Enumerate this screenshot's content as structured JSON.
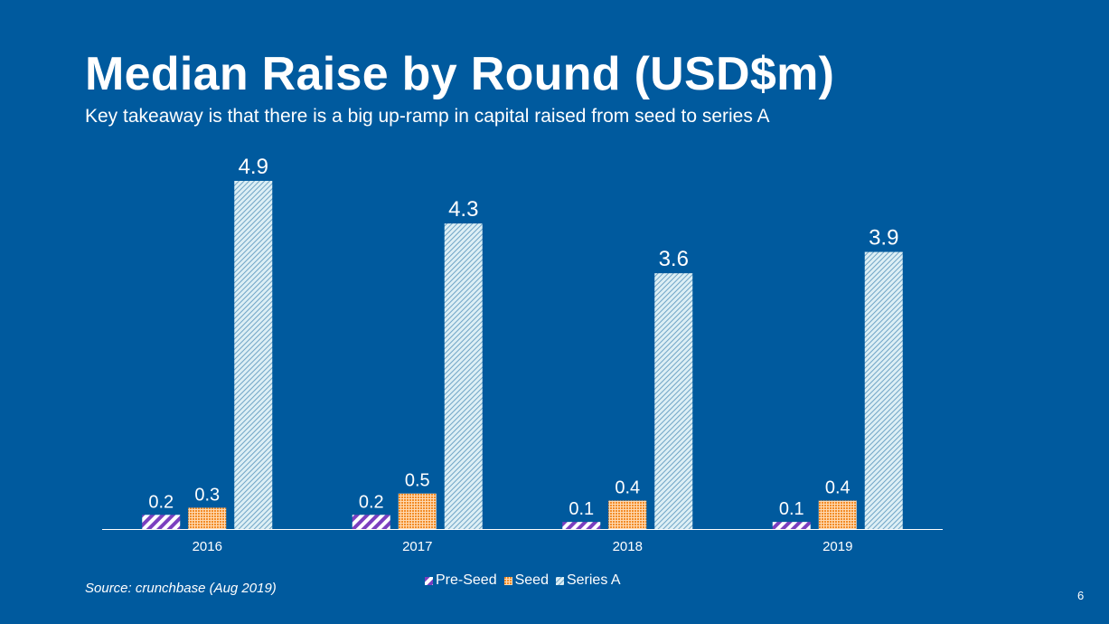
{
  "slide": {
    "title": "Median Raise by Round (USD$m)",
    "subtitle": "Key takeaway is that there is a big up-ramp in capital raised from seed to series A",
    "source": "Source: crunchbase (Aug 2019)",
    "page_number": "6"
  },
  "colors": {
    "background": "#005A9E",
    "pre_seed": "#7B3FBF",
    "seed": "#F28C28",
    "series_a": "#DDEFF5",
    "text": "#FFFFFF"
  },
  "chart_data": {
    "type": "bar",
    "categories": [
      "2016",
      "2017",
      "2018",
      "2019"
    ],
    "series": [
      {
        "name": "Pre-Seed",
        "values": [
          0.2,
          0.2,
          0.1,
          0.1
        ],
        "labels": [
          "0.2",
          "0.2",
          "0.1",
          "0.1"
        ]
      },
      {
        "name": "Seed",
        "values": [
          0.3,
          0.5,
          0.4,
          0.4
        ],
        "labels": [
          "0.3",
          "0.5",
          "0.4",
          "0.4"
        ]
      },
      {
        "name": "Series A",
        "values": [
          4.9,
          4.3,
          3.6,
          3.9
        ],
        "labels": [
          "4.9",
          "4.3",
          "3.6",
          "3.9"
        ]
      }
    ],
    "title": "Median Raise by Round (USD$m)",
    "xlabel": "",
    "ylabel": "",
    "ylim": [
      0,
      5
    ],
    "grid": false,
    "legend": "bottom-center",
    "data_labels": true
  }
}
